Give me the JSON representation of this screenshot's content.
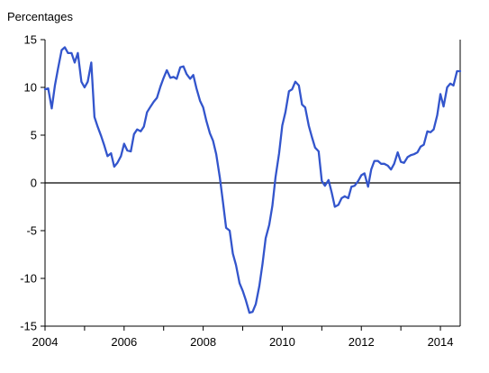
{
  "chart_data": {
    "type": "line",
    "title": "",
    "unit_label": "Percentages",
    "xlabel": "",
    "ylabel": "",
    "xlim": [
      2004.0,
      2014.5
    ],
    "ylim": [
      -15,
      15
    ],
    "x_ticks": [
      2004,
      2006,
      2008,
      2010,
      2012,
      2014
    ],
    "y_ticks": [
      15,
      10,
      5,
      0,
      -5,
      -10,
      -15
    ],
    "grid": false,
    "legend": "none",
    "colors": {
      "line": "#3355cc",
      "axis": "#000000",
      "zero_line": "#000000"
    },
    "series": [
      {
        "x": [
          2004.0,
          2004.08,
          2004.17,
          2004.25,
          2004.33,
          2004.42,
          2004.5,
          2004.58,
          2004.67,
          2004.75,
          2004.83,
          2004.92,
          2005.0,
          2005.08,
          2005.17,
          2005.25,
          2005.33,
          2005.42,
          2005.5,
          2005.58,
          2005.67,
          2005.75,
          2005.83,
          2005.92,
          2006.0,
          2006.08,
          2006.17,
          2006.25,
          2006.33,
          2006.42,
          2006.5,
          2006.58,
          2006.67,
          2006.75,
          2006.83,
          2006.92,
          2007.0,
          2007.08,
          2007.17,
          2007.25,
          2007.33,
          2007.42,
          2007.5,
          2007.58,
          2007.67,
          2007.75,
          2007.83,
          2007.92,
          2008.0,
          2008.08,
          2008.17,
          2008.25,
          2008.33,
          2008.42,
          2008.5,
          2008.58,
          2008.67,
          2008.75,
          2008.83,
          2008.92,
          2009.0,
          2009.08,
          2009.17,
          2009.25,
          2009.33,
          2009.42,
          2009.5,
          2009.58,
          2009.67,
          2009.75,
          2009.83,
          2009.92,
          2010.0,
          2010.08,
          2010.17,
          2010.25,
          2010.33,
          2010.42,
          2010.5,
          2010.58,
          2010.67,
          2010.75,
          2010.83,
          2010.92,
          2011.0,
          2011.08,
          2011.17,
          2011.25,
          2011.33,
          2011.42,
          2011.5,
          2011.58,
          2011.67,
          2011.75,
          2011.83,
          2011.92,
          2012.0,
          2012.08,
          2012.17,
          2012.25,
          2012.33,
          2012.42,
          2012.5,
          2012.58,
          2012.67,
          2012.75,
          2012.83,
          2012.92,
          2013.0,
          2013.08,
          2013.17,
          2013.25,
          2013.33,
          2013.42,
          2013.5,
          2013.58,
          2013.67,
          2013.75,
          2013.83,
          2013.92,
          2014.0,
          2014.08,
          2014.17,
          2014.25,
          2014.33,
          2014.42,
          2014.5
        ],
        "y": [
          9.8,
          9.9,
          7.8,
          10.2,
          12.0,
          13.9,
          14.2,
          13.6,
          13.6,
          12.6,
          13.6,
          10.6,
          10.0,
          10.6,
          12.6,
          6.9,
          5.9,
          4.9,
          3.9,
          2.8,
          3.1,
          1.7,
          2.1,
          2.8,
          4.1,
          3.4,
          3.3,
          5.1,
          5.6,
          5.4,
          5.9,
          7.4,
          8.0,
          8.5,
          8.9,
          10.1,
          11.0,
          11.8,
          11.0,
          11.1,
          10.9,
          12.1,
          12.2,
          11.4,
          10.9,
          11.3,
          9.9,
          8.6,
          7.9,
          6.5,
          5.2,
          4.4,
          3.0,
          0.6,
          -2.0,
          -4.7,
          -5.0,
          -7.4,
          -8.6,
          -10.5,
          -11.3,
          -12.3,
          -13.6,
          -13.5,
          -12.7,
          -10.8,
          -8.5,
          -5.8,
          -4.4,
          -2.4,
          0.6,
          3.1,
          6.0,
          7.4,
          9.6,
          9.8,
          10.6,
          10.2,
          8.2,
          7.9,
          6.0,
          4.8,
          3.7,
          3.3,
          0.2,
          -0.3,
          0.3,
          -1.0,
          -2.5,
          -2.3,
          -1.6,
          -1.4,
          -1.6,
          -0.4,
          -0.3,
          0.2,
          0.8,
          1.0,
          -0.4,
          1.4,
          2.3,
          2.3,
          2.0,
          2.0,
          1.8,
          1.4,
          2.0,
          3.2,
          2.2,
          2.1,
          2.7,
          2.9,
          3.0,
          3.2,
          3.8,
          4.0,
          5.4,
          5.3,
          5.6,
          7.1,
          9.3,
          8.0,
          10.0,
          10.4,
          10.2,
          11.7,
          11.7
        ]
      }
    ]
  }
}
